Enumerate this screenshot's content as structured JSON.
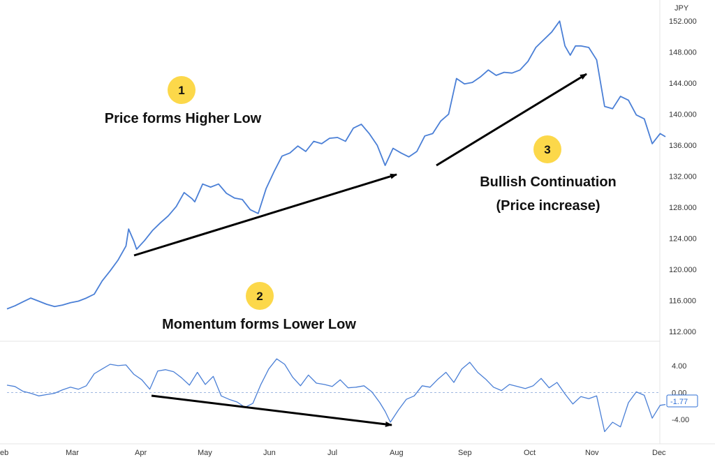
{
  "colors": {
    "line": "#4a7fd6",
    "zero_line": "#9fb8e0",
    "axis_text": "#333333",
    "badge": "#fcd84a",
    "arrow": "#000000",
    "current_value": "#2f6fd6",
    "divider": "#e4e4e4"
  },
  "chart_data": [
    {
      "type": "line",
      "title": "",
      "currency_label": "JPY",
      "x_axis": {
        "labels": [
          "eb",
          "Mar",
          "Apr",
          "May",
          "Jun",
          "Jul",
          "Aug",
          "Sep",
          "Oct",
          "Nov",
          "Dec"
        ]
      },
      "y_axis": {
        "ticks": [
          "152.000",
          "148.000",
          "144.000",
          "140.000",
          "136.000",
          "132.000",
          "128.000",
          "124.000",
          "120.000",
          "116.000",
          "112.000"
        ],
        "ylim": [
          111,
          154
        ],
        "position": "right"
      },
      "series": [
        {
          "values": [
            [
              0,
              114.9
            ],
            [
              3,
              115.3
            ],
            [
              6,
              115.8
            ],
            [
              9,
              116.3
            ],
            [
              12,
              115.9
            ],
            [
              15,
              115.5
            ],
            [
              18,
              115.2
            ],
            [
              21,
              115.4
            ],
            [
              24,
              115.7
            ],
            [
              27,
              115.9
            ],
            [
              30,
              116.3
            ],
            [
              33,
              116.8
            ],
            [
              36,
              118.5
            ],
            [
              39,
              119.8
            ],
            [
              42,
              121.2
            ],
            [
              45,
              123.0
            ],
            [
              46,
              125.2
            ],
            [
              48,
              123.6
            ],
            [
              49,
              122.6
            ],
            [
              52,
              123.7
            ],
            [
              55,
              125.0
            ],
            [
              58,
              126.0
            ],
            [
              61,
              126.9
            ],
            [
              64,
              128.1
            ],
            [
              67,
              129.9
            ],
            [
              70,
              129.1
            ],
            [
              71,
              128.7
            ],
            [
              74,
              131.0
            ],
            [
              77,
              130.6
            ],
            [
              80,
              131.0
            ],
            [
              83,
              129.8
            ],
            [
              86,
              129.2
            ],
            [
              89,
              129.0
            ],
            [
              92,
              127.7
            ],
            [
              95,
              127.2
            ],
            [
              98,
              130.4
            ],
            [
              101,
              132.6
            ],
            [
              104,
              134.6
            ],
            [
              107,
              135.0
            ],
            [
              110,
              135.9
            ],
            [
              113,
              135.2
            ],
            [
              116,
              136.5
            ],
            [
              119,
              136.2
            ],
            [
              122,
              136.9
            ],
            [
              125,
              137.0
            ],
            [
              128,
              136.5
            ],
            [
              131,
              138.2
            ],
            [
              134,
              138.7
            ],
            [
              137,
              137.5
            ],
            [
              140,
              136.0
            ],
            [
              143,
              133.4
            ],
            [
              146,
              135.6
            ],
            [
              149,
              135.0
            ],
            [
              152,
              134.5
            ],
            [
              155,
              135.2
            ],
            [
              158,
              137.2
            ],
            [
              161,
              137.5
            ],
            [
              164,
              139.1
            ],
            [
              167,
              140.0
            ],
            [
              170,
              144.6
            ],
            [
              173,
              143.9
            ],
            [
              176,
              144.1
            ],
            [
              179,
              144.8
            ],
            [
              182,
              145.7
            ],
            [
              185,
              145.0
            ],
            [
              188,
              145.4
            ],
            [
              191,
              145.3
            ],
            [
              194,
              145.7
            ],
            [
              197,
              146.8
            ],
            [
              200,
              148.6
            ],
            [
              203,
              149.6
            ],
            [
              206,
              150.6
            ],
            [
              209,
              152.0
            ],
            [
              211,
              148.8
            ],
            [
              213,
              147.6
            ],
            [
              215,
              148.8
            ],
            [
              217,
              148.8
            ],
            [
              220,
              148.6
            ],
            [
              223,
              147.0
            ],
            [
              226,
              141.0
            ],
            [
              229,
              140.7
            ],
            [
              232,
              142.3
            ],
            [
              235,
              141.8
            ],
            [
              238,
              139.9
            ],
            [
              241,
              139.4
            ],
            [
              244,
              136.2
            ],
            [
              247,
              137.5
            ],
            [
              249,
              137.1
            ]
          ]
        },
        {
          "values": [
            [
              0,
              1.1
            ],
            [
              3,
              0.9
            ],
            [
              6,
              0.2
            ],
            [
              9,
              -0.1
            ],
            [
              12,
              -0.5
            ],
            [
              15,
              -0.3
            ],
            [
              18,
              -0.1
            ],
            [
              21,
              0.4
            ],
            [
              24,
              0.8
            ],
            [
              27,
              0.5
            ],
            [
              30,
              1.0
            ],
            [
              33,
              2.8
            ],
            [
              36,
              3.5
            ],
            [
              39,
              4.2
            ],
            [
              42,
              4.0
            ],
            [
              45,
              4.1
            ],
            [
              48,
              2.7
            ],
            [
              51,
              1.9
            ],
            [
              54,
              0.5
            ],
            [
              57,
              3.2
            ],
            [
              60,
              3.4
            ],
            [
              63,
              3.1
            ],
            [
              66,
              2.2
            ],
            [
              69,
              1.1
            ],
            [
              72,
              3.0
            ],
            [
              75,
              1.2
            ],
            [
              78,
              2.4
            ],
            [
              81,
              -0.5
            ],
            [
              84,
              -1.0
            ],
            [
              87,
              -1.4
            ],
            [
              90,
              -2.2
            ],
            [
              93,
              -1.6
            ],
            [
              96,
              1.2
            ],
            [
              99,
              3.5
            ],
            [
              102,
              5.0
            ],
            [
              105,
              4.2
            ],
            [
              108,
              2.3
            ],
            [
              111,
              1.0
            ],
            [
              114,
              2.6
            ],
            [
              117,
              1.4
            ],
            [
              120,
              1.2
            ],
            [
              123,
              0.9
            ],
            [
              126,
              1.9
            ],
            [
              129,
              0.7
            ],
            [
              132,
              0.8
            ],
            [
              135,
              1.0
            ],
            [
              138,
              0.1
            ],
            [
              141,
              -1.5
            ],
            [
              143,
              -2.8
            ],
            [
              145,
              -4.4
            ],
            [
              148,
              -2.6
            ],
            [
              151,
              -1.0
            ],
            [
              154,
              -0.5
            ],
            [
              157,
              1.0
            ],
            [
              160,
              0.8
            ],
            [
              163,
              2.0
            ],
            [
              166,
              3.0
            ],
            [
              169,
              1.5
            ],
            [
              172,
              3.5
            ],
            [
              175,
              4.5
            ],
            [
              178,
              3.0
            ],
            [
              181,
              2.0
            ],
            [
              184,
              0.8
            ],
            [
              187,
              0.3
            ],
            [
              190,
              1.2
            ],
            [
              193,
              0.9
            ],
            [
              196,
              0.6
            ],
            [
              199,
              1.0
            ],
            [
              202,
              2.1
            ],
            [
              205,
              0.7
            ],
            [
              208,
              1.5
            ],
            [
              211,
              -0.2
            ],
            [
              214,
              -1.7
            ],
            [
              217,
              -0.6
            ],
            [
              220,
              -0.9
            ],
            [
              223,
              -0.5
            ],
            [
              226,
              -5.8
            ],
            [
              229,
              -4.4
            ],
            [
              232,
              -5.1
            ],
            [
              235,
              -1.5
            ],
            [
              238,
              0.1
            ],
            [
              241,
              -0.4
            ],
            [
              244,
              -3.8
            ],
            [
              247,
              -1.9
            ],
            [
              249,
              -1.77
            ]
          ],
          "yticks": [
            "4.00",
            "0.00",
            "-4.00"
          ],
          "ylim": [
            -7.2,
            7.2
          ],
          "current_value_label": "-1.77"
        }
      ]
    }
  ],
  "annotations": [
    {
      "badge": "1",
      "text": "Price forms Higher Low"
    },
    {
      "badge": "2",
      "text": "Momentum forms Lower Low"
    },
    {
      "badge": "3",
      "lines": [
        "Bullish Continuation",
        "(Price increase)"
      ]
    }
  ]
}
